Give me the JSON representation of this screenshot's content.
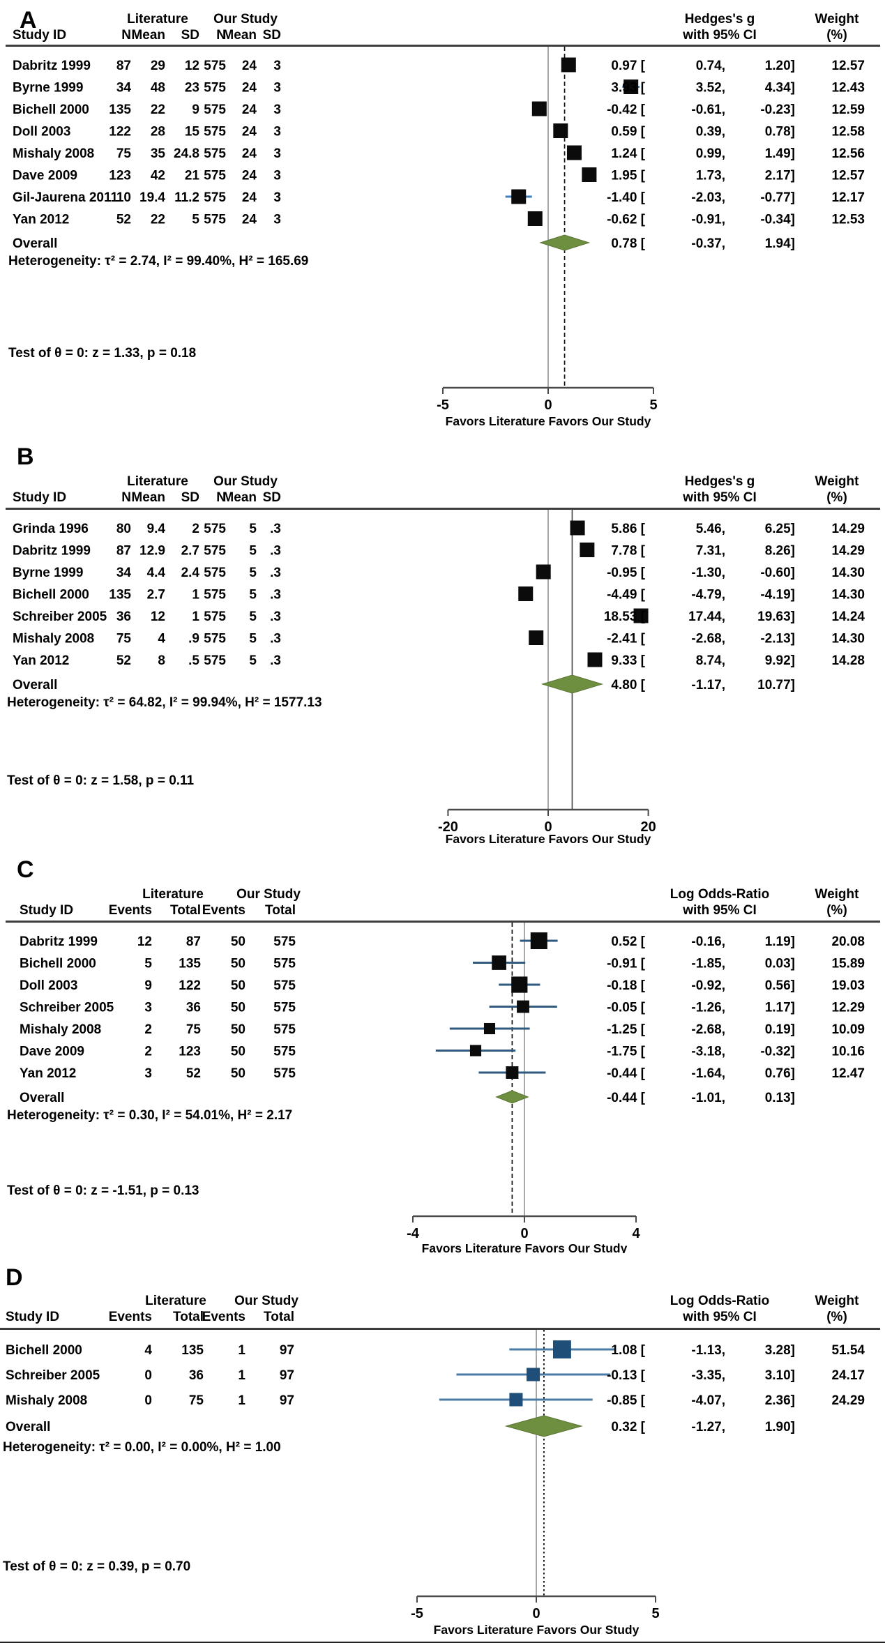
{
  "chart_data": [
    {
      "type": "scatter",
      "panel_label": "A",
      "columns": {
        "study": "Study ID",
        "group1": "Literature",
        "group2": "Our Study",
        "sub": [
          "N",
          "Mean",
          "SD",
          "N",
          "Mean",
          "SD"
        ]
      },
      "effect_header": [
        "Hedges's g",
        "with 95% CI"
      ],
      "weight_header": [
        "Weight",
        "(%)"
      ],
      "studies": [
        {
          "id": "Dabritz 1999",
          "table": [
            "87",
            "29",
            "12",
            "575",
            "24",
            "3"
          ],
          "est": 0.97,
          "lo": 0.74,
          "hi": 1.2,
          "weight": "12.57"
        },
        {
          "id": "Byrne 1999",
          "table": [
            "34",
            "48",
            "23",
            "575",
            "24",
            "3"
          ],
          "est": 3.93,
          "lo": 3.52,
          "hi": 4.34,
          "weight": "12.43"
        },
        {
          "id": "Bichell 2000",
          "table": [
            "135",
            "22",
            "9",
            "575",
            "24",
            "3"
          ],
          "est": -0.42,
          "lo": -0.61,
          "hi": -0.23,
          "weight": "12.59"
        },
        {
          "id": "Doll 2003",
          "table": [
            "122",
            "28",
            "15",
            "575",
            "24",
            "3"
          ],
          "est": 0.59,
          "lo": 0.39,
          "hi": 0.78,
          "weight": "12.58"
        },
        {
          "id": "Mishaly 2008",
          "table": [
            "75",
            "35",
            "24.8",
            "575",
            "24",
            "3"
          ],
          "est": 1.24,
          "lo": 0.99,
          "hi": 1.49,
          "weight": "12.56"
        },
        {
          "id": "Dave 2009",
          "table": [
            "123",
            "42",
            "21",
            "575",
            "24",
            "3"
          ],
          "est": 1.95,
          "lo": 1.73,
          "hi": 2.17,
          "weight": "12.57"
        },
        {
          "id": "Gil-Jaurena 2011",
          "table": [
            "10",
            "19.4",
            "11.2",
            "575",
            "24",
            "3"
          ],
          "est": -1.4,
          "lo": -2.03,
          "hi": -0.77,
          "weight": "12.17"
        },
        {
          "id": "Yan 2012",
          "table": [
            "52",
            "22",
            "5",
            "575",
            "24",
            "3"
          ],
          "est": -0.62,
          "lo": -0.91,
          "hi": -0.34,
          "weight": "12.53"
        }
      ],
      "overall": {
        "label": "Overall",
        "est": 0.78,
        "lo": -0.37,
        "hi": 1.94
      },
      "heterogeneity": "Heterogeneity: τ² = 2.74, I² = 99.40%, H² = 165.69",
      "test": "Test of θ = 0: z = 1.33, p = 0.18",
      "axis": {
        "ticks": [
          -5,
          0,
          5
        ],
        "xlim": [
          -5,
          5
        ],
        "xlabel": "Favors Literature Favors Our Study"
      },
      "colors": {
        "marker": "#0b0b0b",
        "whisker": "#3f7cba",
        "diamond": "#6d8f3f"
      }
    },
    {
      "type": "scatter",
      "panel_label": "B",
      "columns": {
        "study": "Study ID",
        "group1": "Literature",
        "group2": "Our Study",
        "sub": [
          "N",
          "Mean",
          "SD",
          "N",
          "Mean",
          "SD"
        ]
      },
      "effect_header": [
        "Hedges's g",
        "with 95% CI"
      ],
      "weight_header": [
        "Weight",
        "(%)"
      ],
      "studies": [
        {
          "id": "Grinda 1996",
          "table": [
            "80",
            "9.4",
            "2",
            "575",
            "5",
            ".3"
          ],
          "est": 5.86,
          "lo": 5.46,
          "hi": 6.25,
          "weight": "14.29"
        },
        {
          "id": "Dabritz 1999",
          "table": [
            "87",
            "12.9",
            "2.7",
            "575",
            "5",
            ".3"
          ],
          "est": 7.78,
          "lo": 7.31,
          "hi": 8.26,
          "weight": "14.29"
        },
        {
          "id": "Byrne 1999",
          "table": [
            "34",
            "4.4",
            "2.4",
            "575",
            "5",
            ".3"
          ],
          "est": -0.95,
          "lo": -1.3,
          "hi": -0.6,
          "weight": "14.30"
        },
        {
          "id": "Bichell 2000",
          "table": [
            "135",
            "2.7",
            "1",
            "575",
            "5",
            ".3"
          ],
          "est": -4.49,
          "lo": -4.79,
          "hi": -4.19,
          "weight": "14.30"
        },
        {
          "id": "Schreiber 2005",
          "table": [
            "36",
            "12",
            "1",
            "575",
            "5",
            ".3"
          ],
          "est": 18.53,
          "lo": 17.44,
          "hi": 19.63,
          "weight": "14.24"
        },
        {
          "id": "Mishaly 2008",
          "table": [
            "75",
            "4",
            ".9",
            "575",
            "5",
            ".3"
          ],
          "est": -2.41,
          "lo": -2.68,
          "hi": -2.13,
          "weight": "14.30"
        },
        {
          "id": "Yan 2012",
          "table": [
            "52",
            "8",
            ".5",
            "575",
            "5",
            ".3"
          ],
          "est": 9.33,
          "lo": 8.74,
          "hi": 9.92,
          "weight": "14.28"
        }
      ],
      "overall": {
        "label": "Overall",
        "est": 4.8,
        "lo": -1.17,
        "hi": 10.77
      },
      "heterogeneity": "Heterogeneity: τ² = 64.82, I² = 99.94%, H² = 1577.13",
      "test": "Test of θ = 0: z = 1.58, p = 0.11",
      "axis": {
        "ticks": [
          -20,
          0,
          20
        ],
        "xlim": [
          -20,
          20
        ],
        "xlabel": "Favors Literature Favors Our Study"
      },
      "colors": {
        "marker": "#0b0b0b",
        "whisker": "#3f7cba",
        "diamond": "#6d8f3f"
      }
    },
    {
      "type": "scatter",
      "panel_label": "C",
      "columns": {
        "study": "Study ID",
        "group1": "Literature",
        "group2": "Our Study",
        "sub": [
          "Events",
          "Total",
          "Events",
          "Total"
        ]
      },
      "effect_header": [
        "Log Odds-Ratio",
        "with 95% CI"
      ],
      "weight_header": [
        "Weight",
        "(%)"
      ],
      "studies": [
        {
          "id": "Dabritz 1999",
          "table": [
            "12",
            "87",
            "50",
            "575"
          ],
          "est": 0.52,
          "lo": -0.16,
          "hi": 1.19,
          "weight": "20.08"
        },
        {
          "id": "Bichell 2000",
          "table": [
            "5",
            "135",
            "50",
            "575"
          ],
          "est": -0.91,
          "lo": -1.85,
          "hi": 0.03,
          "weight": "15.89"
        },
        {
          "id": "Doll 2003",
          "table": [
            "9",
            "122",
            "50",
            "575"
          ],
          "est": -0.18,
          "lo": -0.92,
          "hi": 0.56,
          "weight": "19.03"
        },
        {
          "id": "Schreiber 2005",
          "table": [
            "3",
            "36",
            "50",
            "575"
          ],
          "est": -0.05,
          "lo": -1.26,
          "hi": 1.17,
          "weight": "12.29"
        },
        {
          "id": "Mishaly 2008",
          "table": [
            "2",
            "75",
            "50",
            "575"
          ],
          "est": -1.25,
          "lo": -2.68,
          "hi": 0.19,
          "weight": "10.09"
        },
        {
          "id": "Dave 2009",
          "table": [
            "2",
            "123",
            "50",
            "575"
          ],
          "est": -1.75,
          "lo": -3.18,
          "hi": -0.32,
          "weight": "10.16"
        },
        {
          "id": "Yan 2012",
          "table": [
            "3",
            "52",
            "50",
            "575"
          ],
          "est": -0.44,
          "lo": -1.64,
          "hi": 0.76,
          "weight": "12.47"
        }
      ],
      "overall": {
        "label": "Overall",
        "est": -0.44,
        "lo": -1.01,
        "hi": 0.13
      },
      "heterogeneity": "Heterogeneity: τ² = 0.30, I² = 54.01%, H² = 2.17",
      "test": "Test of θ = 0: z = -1.51, p = 0.13",
      "axis": {
        "ticks": [
          -4,
          0,
          4
        ],
        "xlim": [
          -4,
          4
        ],
        "xlabel": "Favors Literature Favors Our Study"
      },
      "colors": {
        "marker": "#0b0b0b",
        "whisker": "#2f5a7e",
        "diamond": "#6d8f3f"
      }
    },
    {
      "type": "scatter",
      "panel_label": "D",
      "columns": {
        "study": "Study ID",
        "group1": "Literature",
        "group2": "Our Study",
        "sub": [
          "Events",
          "Total",
          "Events",
          "Total"
        ]
      },
      "effect_header": [
        "Log Odds-Ratio",
        "with 95% CI"
      ],
      "weight_header": [
        "Weight",
        "(%)"
      ],
      "studies": [
        {
          "id": "Bichell 2000",
          "table": [
            "4",
            "135",
            "1",
            "97"
          ],
          "est": 1.08,
          "lo": -1.13,
          "hi": 3.28,
          "weight": "51.54"
        },
        {
          "id": "Schreiber 2005",
          "table": [
            "0",
            "36",
            "1",
            "97"
          ],
          "est": -0.13,
          "lo": -3.35,
          "hi": 3.1,
          "weight": "24.17"
        },
        {
          "id": "Mishaly 2008",
          "table": [
            "0",
            "75",
            "1",
            "97"
          ],
          "est": -0.85,
          "lo": -4.07,
          "hi": 2.36,
          "weight": "24.29"
        }
      ],
      "overall": {
        "label": "Overall",
        "est": 0.32,
        "lo": -1.27,
        "hi": 1.9
      },
      "heterogeneity": "Heterogeneity: τ² = 0.00, I² = 0.00%, H² = 1.00",
      "test": "Test of θ = 0: z = 0.39, p = 0.70",
      "axis": {
        "ticks": [
          -5,
          0,
          5
        ],
        "xlim": [
          -5,
          5
        ],
        "xlabel": "Favors Literature Favors Our Study"
      },
      "colors": {
        "marker": "#1f4e79",
        "whisker": "#4a7ba6",
        "diamond": "#6d8f3f"
      }
    }
  ]
}
